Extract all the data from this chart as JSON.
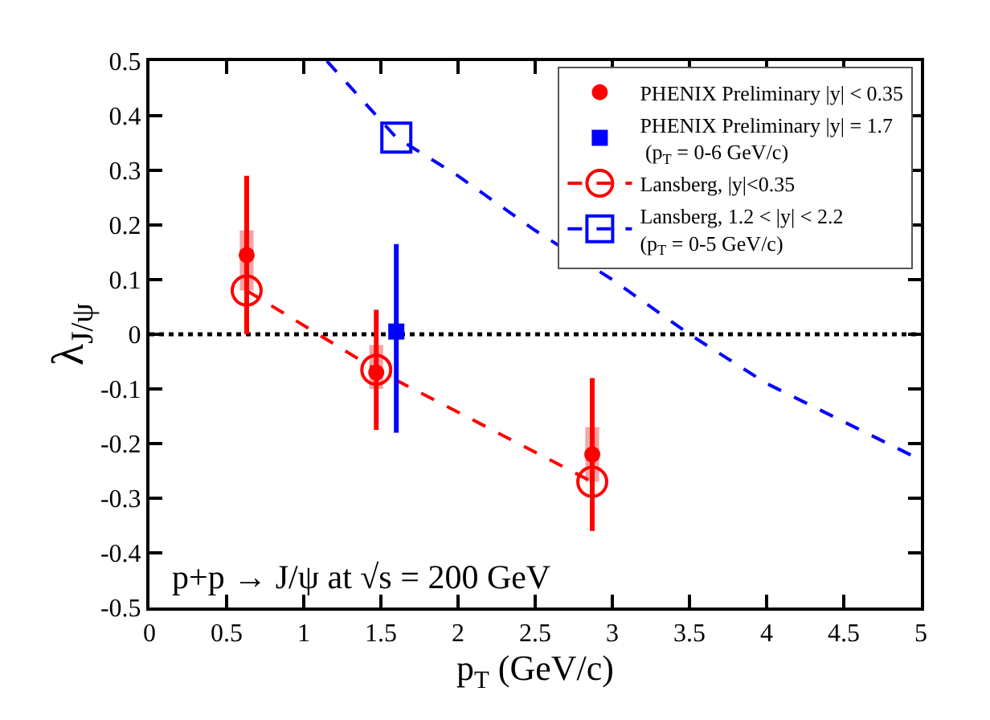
{
  "chart_data": {
    "type": "scatter",
    "xlabel": "p$_{T}$ (GeV/c)",
    "ylabel": "λ$_{J/ψ}$",
    "xlim": [
      0,
      5
    ],
    "xticks": [
      0,
      0.5,
      1,
      1.5,
      2,
      2.5,
      3,
      3.5,
      4,
      4.5,
      5
    ],
    "ylim": [
      -0.5,
      0.5
    ],
    "yticks": [
      -0.5,
      -0.4,
      -0.3,
      -0.2,
      -0.1,
      0,
      0.1,
      0.2,
      0.3,
      0.4,
      0.5
    ],
    "grid": false,
    "legend": "top right",
    "ref_lines": [
      {
        "axis": "y",
        "value": 0,
        "line_style": "dotted",
        "color": "#000000"
      }
    ],
    "annotations": [
      "p+p → J/ψ at √s = 200 GeV"
    ],
    "series": [
      {
        "color": "#ff0000",
        "marker": "circle",
        "name": "PHENIX Preliminary |y| < 0.35",
        "x": [
          0.63,
          1.47,
          2.87
        ],
        "values": [
          0.145,
          -0.07,
          -0.22
        ],
        "errors": [
          [
            0.0,
            0.29
          ],
          [
            -0.175,
            0.045
          ],
          [
            -0.36,
            -0.08
          ]
        ]
      },
      {
        "color": "#0000ff",
        "marker": "square",
        "name": "PHENIX Preliminary |y| = 1.7\n (p$_{T}$ = 0-6 GeV/c)",
        "x": [
          1.6
        ],
        "values": [
          0.005
        ],
        "errors": [
          [
            -0.18,
            0.165
          ]
        ]
      },
      {
        "type": "line",
        "color": "#ff0000",
        "line_style": "dashed",
        "marker": "circle",
        "name": "Lansberg, |y|<0.35",
        "x": [
          0.63,
          1.47,
          2.87
        ],
        "values": [
          0.08,
          -0.065,
          -0.27
        ]
      },
      {
        "type": "line",
        "color": "#0000ff",
        "line_style": "dashed",
        "marker": "none",
        "x": [
          1.15,
          1.6,
          2.0,
          2.5,
          3.0,
          3.5,
          4.0,
          4.5,
          5.0
        ],
        "values": [
          0.5,
          0.36,
          0.29,
          0.19,
          0.1,
          0.0,
          -0.09,
          -0.16,
          -0.23
        ]
      },
      {
        "type": "line",
        "color": "#0000ff",
        "line_style": "dashed",
        "marker": "square",
        "name": "Lansberg, 1.2 < |y| < 2.2\n(p$_{T}$ = 0-5 GeV/c)",
        "x": [
          1.6
        ],
        "values": [
          0.36
        ]
      },
      {
        "type": "bar",
        "color": "#f08080",
        "x": [
          0.63,
          1.47,
          2.87
        ],
        "base": [
          0.08,
          -0.1,
          -0.27
        ],
        "values": [
          0.11,
          0.08,
          0.1
        ]
      }
    ]
  }
}
